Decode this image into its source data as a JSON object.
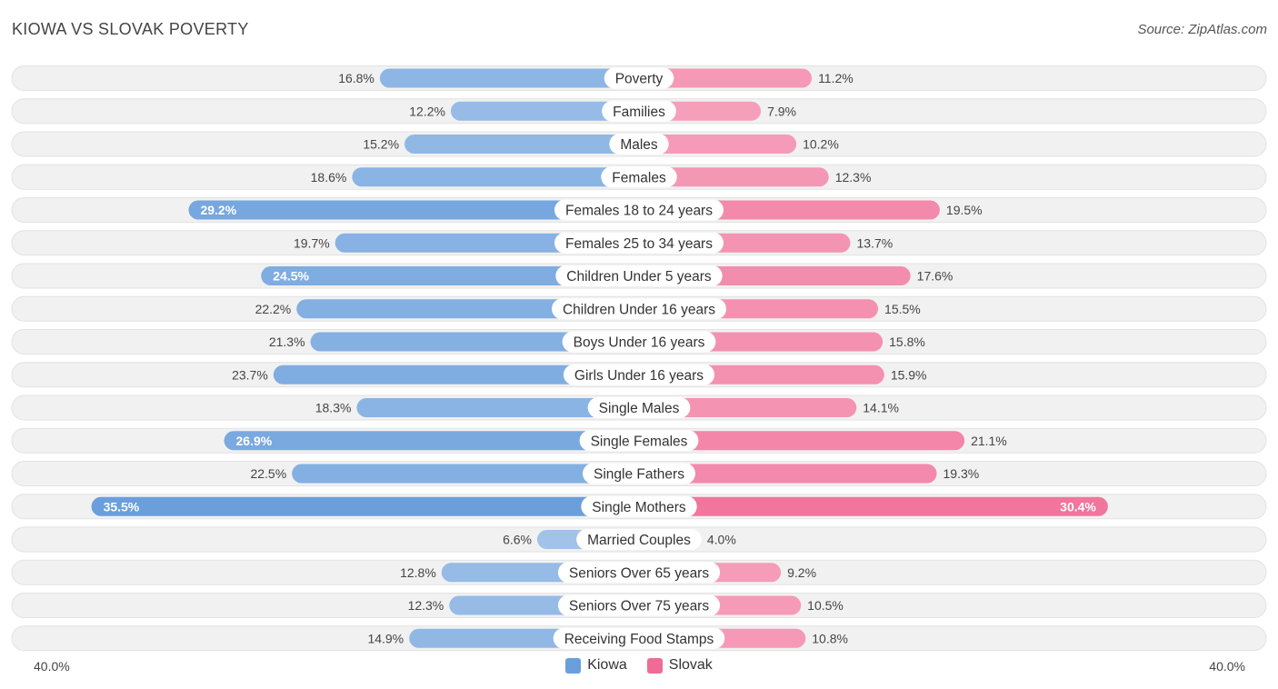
{
  "chart_data": {
    "type": "bar",
    "orientation": "horizontal-diverging",
    "title": "KIOWA VS SLOVAK POVERTY",
    "source": "Source: ZipAtlas.com",
    "categories": [
      "Poverty",
      "Families",
      "Males",
      "Females",
      "Females 18 to 24 years",
      "Females 25 to 34 years",
      "Children Under 5 years",
      "Children Under 16 years",
      "Boys Under 16 years",
      "Girls Under 16 years",
      "Single Males",
      "Single Females",
      "Single Fathers",
      "Single Mothers",
      "Married Couples",
      "Seniors Over 65 years",
      "Seniors Over 75 years",
      "Receiving Food Stamps"
    ],
    "series": [
      {
        "name": "Kiowa",
        "side": "left",
        "color": "#6a9fdc",
        "values": [
          16.8,
          12.2,
          15.2,
          18.6,
          29.2,
          19.7,
          24.5,
          22.2,
          21.3,
          23.7,
          18.3,
          26.9,
          22.5,
          35.5,
          6.6,
          12.8,
          12.3,
          14.9
        ],
        "labels": [
          "16.8%",
          "12.2%",
          "15.2%",
          "18.6%",
          "29.2%",
          "19.7%",
          "24.5%",
          "22.2%",
          "21.3%",
          "23.7%",
          "18.3%",
          "26.9%",
          "22.5%",
          "35.5%",
          "6.6%",
          "12.8%",
          "12.3%",
          "14.9%"
        ]
      },
      {
        "name": "Slovak",
        "side": "right",
        "color": "#f06b96",
        "values": [
          11.2,
          7.9,
          10.2,
          12.3,
          19.5,
          13.7,
          17.6,
          15.5,
          15.8,
          15.9,
          14.1,
          21.1,
          19.3,
          30.4,
          4.0,
          9.2,
          10.5,
          10.8
        ],
        "labels": [
          "11.2%",
          "7.9%",
          "10.2%",
          "12.3%",
          "19.5%",
          "13.7%",
          "17.6%",
          "15.5%",
          "15.8%",
          "15.9%",
          "14.1%",
          "21.1%",
          "19.3%",
          "30.4%",
          "4.0%",
          "9.2%",
          "10.5%",
          "10.8%"
        ]
      }
    ],
    "xlim": [
      -40,
      40
    ],
    "axis_labels": {
      "left": "40.0%",
      "right": "40.0%"
    },
    "legend": {
      "placement": "bottom-center",
      "items": [
        "Kiowa",
        "Slovak"
      ]
    },
    "unit": "%"
  }
}
